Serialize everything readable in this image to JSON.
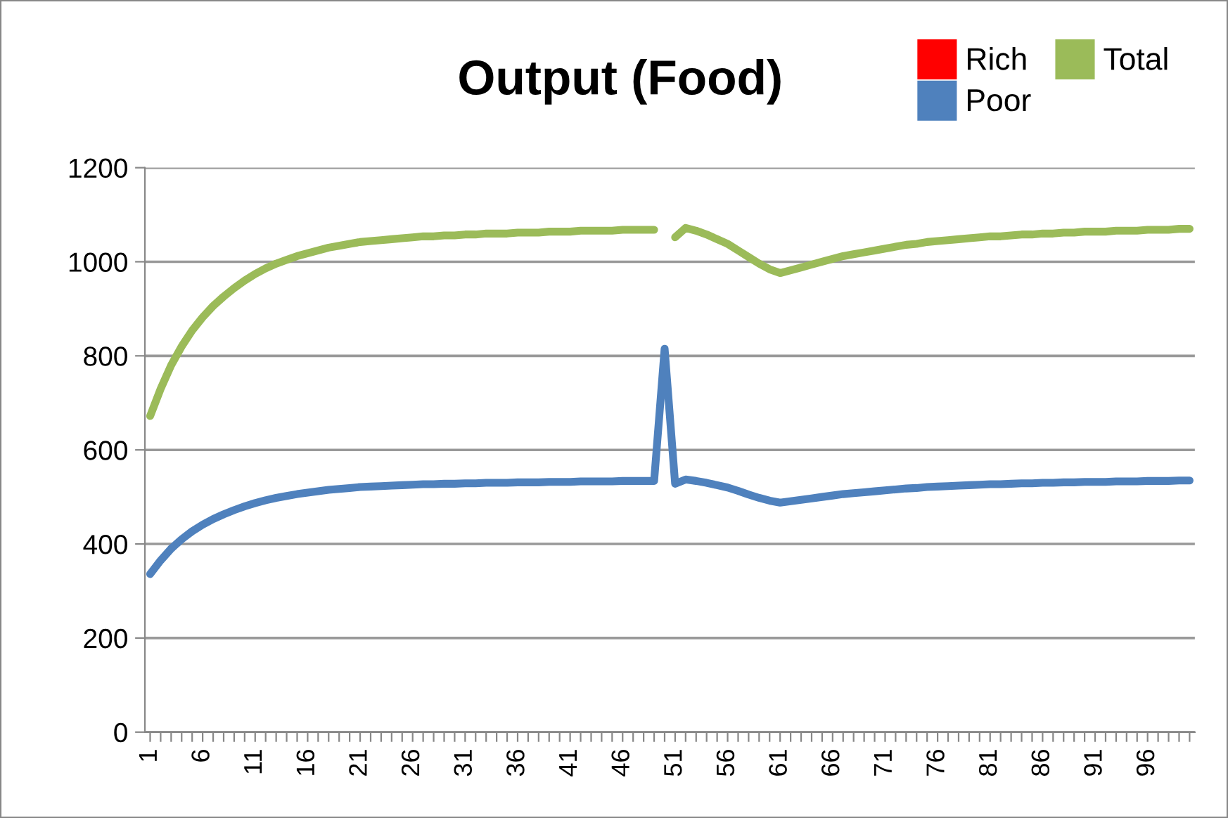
{
  "chart_data": {
    "type": "line",
    "title": "Output (Food)",
    "categories": [
      "1",
      null,
      null,
      null,
      null,
      "6",
      null,
      null,
      null,
      null,
      "11",
      null,
      null,
      null,
      null,
      "16",
      null,
      null,
      null,
      null,
      "21",
      null,
      null,
      null,
      null,
      "26",
      null,
      null,
      null,
      null,
      "31",
      null,
      null,
      null,
      null,
      "36",
      null,
      null,
      null,
      null,
      "41",
      null,
      null,
      null,
      null,
      "46",
      null,
      null,
      null,
      null,
      "51",
      null,
      null,
      null,
      null,
      "56",
      null,
      null,
      null,
      null,
      "61",
      null,
      null,
      null,
      null,
      "66",
      null,
      null,
      null,
      null,
      "71",
      null,
      null,
      null,
      null,
      "76",
      null,
      null,
      null,
      null,
      "81",
      null,
      null,
      null,
      null,
      "86",
      null,
      null,
      null,
      null,
      "91",
      null,
      null,
      null,
      null,
      "96",
      null,
      null,
      null,
      null
    ],
    "series": [
      {
        "name": "Rich",
        "color": "#ff0000",
        "values": [
          null,
          null,
          null,
          null,
          null,
          null,
          null,
          null,
          null,
          null,
          null,
          null,
          null,
          null,
          null,
          null,
          null,
          null,
          null,
          null,
          null,
          null,
          null,
          null,
          null,
          null,
          null,
          null,
          null,
          null,
          null,
          null,
          null,
          null,
          null,
          null,
          null,
          null,
          null,
          null,
          null,
          null,
          null,
          null,
          null,
          null,
          null,
          null,
          null,
          null,
          null,
          null,
          null,
          null,
          null,
          null,
          null,
          null,
          null,
          null,
          null,
          null,
          null,
          null,
          null,
          null,
          null,
          null,
          null,
          null,
          null,
          null,
          null,
          null,
          null,
          null,
          null,
          null,
          null,
          null,
          null,
          null,
          null,
          null,
          null,
          null,
          null,
          null,
          null,
          null,
          null,
          null,
          null,
          null,
          null,
          null,
          null,
          null,
          null,
          null
        ]
      },
      {
        "name": "Poor",
        "color": "#4f81bd",
        "values": [
          336,
          365,
          390,
          410,
          427,
          441,
          453,
          463,
          472,
          480,
          487,
          493,
          498,
          502,
          506,
          509,
          512,
          515,
          517,
          519,
          521,
          522,
          523,
          524,
          525,
          526,
          527,
          527,
          528,
          528,
          529,
          529,
          530,
          530,
          530,
          531,
          531,
          531,
          532,
          532,
          532,
          533,
          533,
          533,
          533,
          534,
          534,
          534,
          534,
          815,
          528,
          537,
          534,
          530,
          525,
          520,
          513,
          505,
          498,
          492,
          488,
          491,
          494,
          497,
          500,
          503,
          506,
          508,
          510,
          512,
          514,
          516,
          518,
          519,
          521,
          522,
          523,
          524,
          525,
          526,
          527,
          527,
          528,
          529,
          529,
          530,
          530,
          531,
          531,
          532,
          532,
          532,
          533,
          533,
          533,
          534,
          534,
          534,
          535,
          535
        ]
      },
      {
        "name": "Total",
        "color": "#9bbb59",
        "values": [
          672,
          730,
          780,
          820,
          854,
          882,
          906,
          926,
          944,
          960,
          974,
          986,
          996,
          1004,
          1012,
          1018,
          1024,
          1030,
          1034,
          1038,
          1042,
          1044,
          1046,
          1048,
          1050,
          1052,
          1054,
          1054,
          1056,
          1056,
          1058,
          1058,
          1060,
          1060,
          1060,
          1062,
          1062,
          1062,
          1064,
          1064,
          1064,
          1066,
          1066,
          1066,
          1066,
          1068,
          1068,
          1068,
          1068,
          null,
          1052,
          1072,
          1066,
          1058,
          1048,
          1038,
          1024,
          1010,
          996,
          984,
          976,
          982,
          988,
          994,
          1000,
          1006,
          1012,
          1016,
          1020,
          1024,
          1028,
          1032,
          1036,
          1038,
          1042,
          1044,
          1046,
          1048,
          1050,
          1052,
          1054,
          1054,
          1056,
          1058,
          1058,
          1060,
          1060,
          1062,
          1062,
          1064,
          1064,
          1064,
          1066,
          1066,
          1066,
          1068,
          1068,
          1068,
          1070,
          1070
        ]
      }
    ],
    "ylim": [
      0,
      1200
    ],
    "yticks": [
      0,
      200,
      400,
      600,
      800,
      1000,
      1200
    ],
    "grid": "y",
    "legend": "top right",
    "marker": "none",
    "line_style": "solid"
  }
}
